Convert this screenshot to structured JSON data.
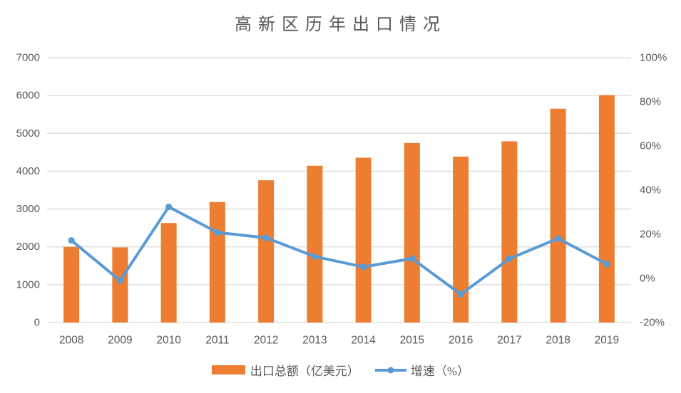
{
  "chart_data": {
    "type": "combo-bar-line",
    "title": "高新区历年出口情况",
    "categories": [
      "2008",
      "2009",
      "2010",
      "2011",
      "2012",
      "2013",
      "2014",
      "2015",
      "2016",
      "2017",
      "2018",
      "2019"
    ],
    "series": [
      {
        "name": "出口总额（亿美元）",
        "type": "bar",
        "axis": "left",
        "values": [
          2000,
          1985,
          2630,
          3185,
          3760,
          4145,
          4355,
          4745,
          4385,
          4790,
          5650,
          6010
        ]
      },
      {
        "name": "增速（%）",
        "type": "line",
        "axis": "right",
        "values": [
          17.2,
          -1.0,
          32.4,
          20.8,
          18.4,
          9.9,
          5.2,
          9.0,
          -7.2,
          8.9,
          18.1,
          6.5
        ]
      }
    ],
    "left_axis": {
      "min": 0,
      "max": 7000,
      "step": 1000,
      "tick_labels": [
        "7000",
        "6000",
        "5000",
        "4000",
        "3000",
        "2000",
        "1000",
        "0"
      ]
    },
    "right_axis": {
      "min": -20,
      "max": 100,
      "step": 20,
      "tick_labels": [
        "100%",
        "80%",
        "60%",
        "40%",
        "20%",
        "0%",
        "-20%"
      ]
    },
    "grid": true,
    "legend_position": "bottom",
    "legend": [
      "出口总额（亿美元）",
      "增速（%）"
    ],
    "colors": {
      "bar": "#ED7D31",
      "line": "#5B9BD5",
      "gridline": "#D9D9D9",
      "axis_text": "#595959",
      "title_text": "#595959",
      "background": "#FFFFFF"
    }
  }
}
